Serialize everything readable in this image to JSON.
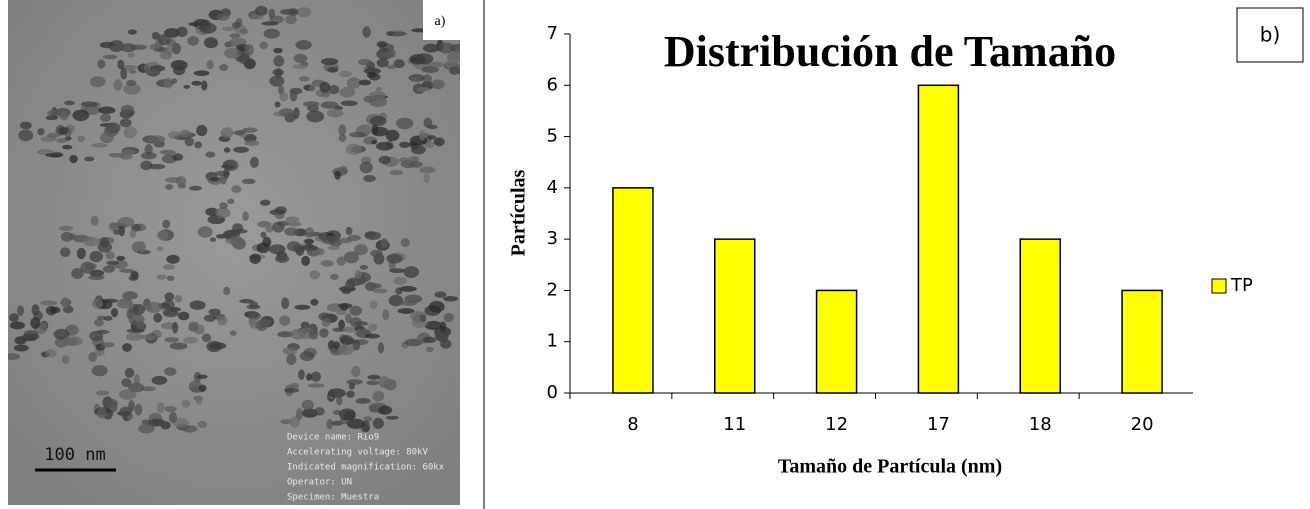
{
  "image_panel": {
    "label": "a)",
    "scale_bar": "100 nm",
    "info": [
      "Device name: Rio9",
      "Accelerating voltage: 80kV",
      "Indicated magnification: 60kx",
      "Operator: UN",
      "Specimen: Muestra"
    ]
  },
  "chart_data": {
    "type": "bar",
    "title": "Distribución de Tamaño",
    "panel_label": "b)",
    "x_label": "Tamaño de Partícula (nm)",
    "y_label": "Partículas",
    "categories": [
      "8",
      "11",
      "12",
      "17",
      "18",
      "20"
    ],
    "series": [
      {
        "name": "TP",
        "color": "#ffff00",
        "values": [
          4,
          3,
          2,
          6,
          3,
          2
        ]
      }
    ],
    "ylim": [
      0,
      7
    ],
    "yticks": [
      0,
      1,
      2,
      3,
      4,
      5,
      6,
      7
    ],
    "grid": false,
    "legend": "right"
  }
}
